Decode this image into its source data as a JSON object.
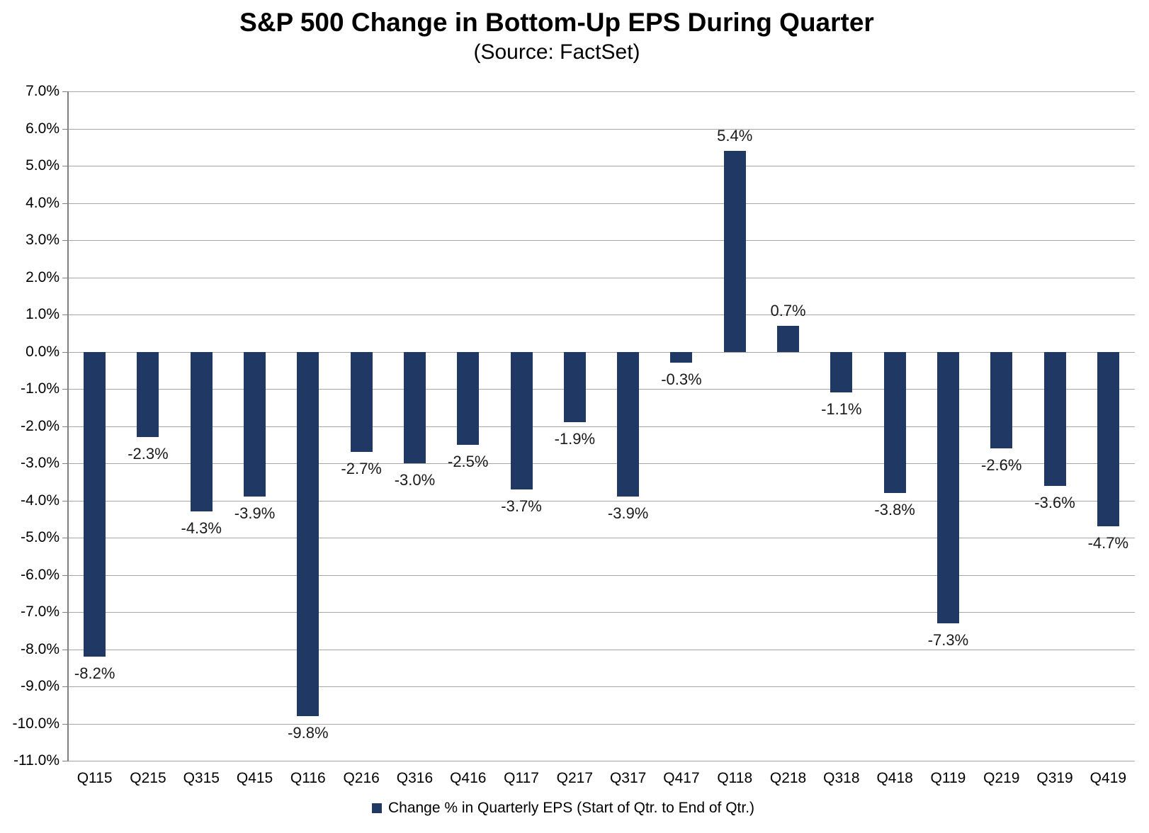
{
  "header": {
    "title": "S&P 500 Change in Bottom-Up EPS During Quarter",
    "subtitle": "(Source: FactSet)"
  },
  "chart_data": {
    "type": "bar",
    "title": "S&P 500 Change in Bottom-Up EPS During Quarter",
    "subtitle": "(Source: FactSet)",
    "categories": [
      "Q115",
      "Q215",
      "Q315",
      "Q415",
      "Q116",
      "Q216",
      "Q316",
      "Q416",
      "Q117",
      "Q217",
      "Q317",
      "Q417",
      "Q118",
      "Q218",
      "Q318",
      "Q418",
      "Q119",
      "Q219",
      "Q319",
      "Q419"
    ],
    "values": [
      -8.2,
      -2.3,
      -4.3,
      -3.9,
      -9.8,
      -2.7,
      -3.0,
      -2.5,
      -3.7,
      -1.9,
      -3.9,
      -0.3,
      5.4,
      0.7,
      -1.1,
      -3.8,
      -7.3,
      -2.6,
      -3.6,
      -4.7
    ],
    "data_labels": [
      "-8.2%",
      "-2.3%",
      "-4.3%",
      "-3.9%",
      "-9.8%",
      "-2.7%",
      "-3.0%",
      "-2.5%",
      "-3.7%",
      "-1.9%",
      "-3.9%",
      "-0.3%",
      "5.4%",
      "0.7%",
      "-1.1%",
      "-3.8%",
      "-7.3%",
      "-2.6%",
      "-3.6%",
      "-4.7%"
    ],
    "xlabel": "",
    "ylabel": "",
    "ylim": [
      -11,
      7
    ],
    "ytick_step": 1.0,
    "yticks": [
      "7.0%",
      "6.0%",
      "5.0%",
      "4.0%",
      "3.0%",
      "2.0%",
      "1.0%",
      "0.0%",
      "-1.0%",
      "-2.0%",
      "-3.0%",
      "-4.0%",
      "-5.0%",
      "-6.0%",
      "-7.0%",
      "-8.0%",
      "-9.0%",
      "-10.0%",
      "-11.0%"
    ],
    "grid": true,
    "legend": "Change % in Quarterly EPS (Start of Qtr. to End of Qtr.)",
    "legend_position": "bottom",
    "colors": {
      "bar": "#1F3864",
      "gridline": "#A6A6A6",
      "axis": "#808080",
      "data_label": "#1a1a1a",
      "background": "#ffffff"
    }
  }
}
